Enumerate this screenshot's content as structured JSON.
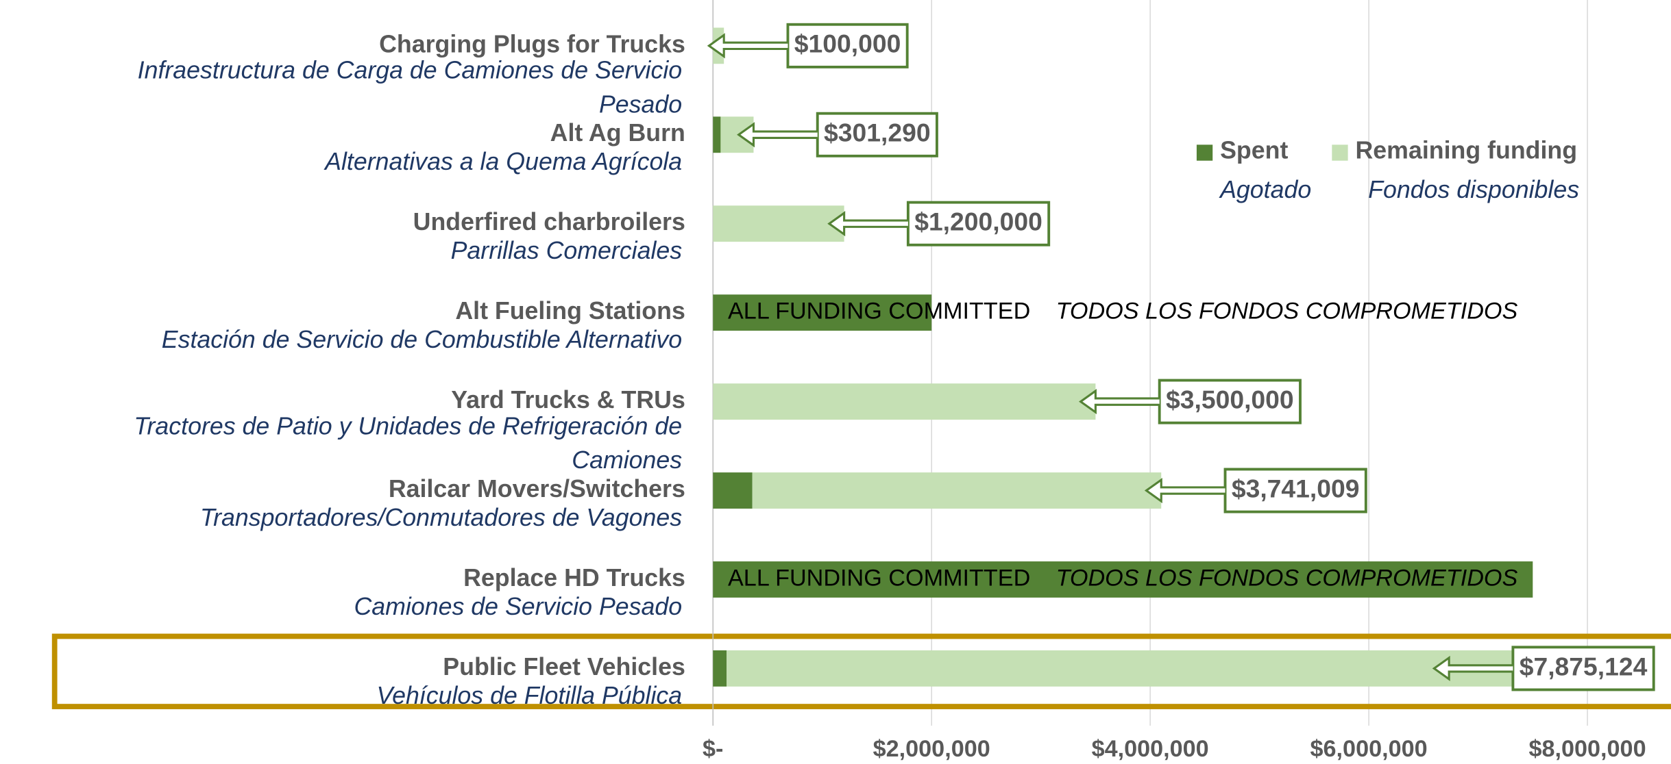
{
  "chart_data": {
    "type": "stacked-barh",
    "categories": [
      "Charging Plugs for Trucks",
      "Alt Ag Burn",
      "Underfired charbroilers",
      "Alt Fueling Stations",
      "Yard Trucks & TRUs",
      "Railcar Movers/Switchers",
      "Replace HD Trucks",
      "Public Fleet Vehicles"
    ],
    "categories_es": [
      "Infraestructura de Carga de Camiones de Servicio Pesado",
      "Alternativas a la Quema Agrícola",
      "Parrillas Comerciales",
      "Estación de Servicio de Combustible Alternativo",
      "Tractores de Patio y Unidades de Refrigeración de Camiones",
      "Transportadores/Conmutadores de Vagones",
      "Camiones de Servicio Pesado",
      "Vehículos de Flotilla Pública"
    ],
    "series": [
      {
        "name": "Spent",
        "name_es": "Agotado",
        "color": "#548235",
        "values": [
          0,
          70000,
          0,
          2000000,
          0,
          360000,
          7500000,
          125000
        ]
      },
      {
        "name": "Remaining funding",
        "name_es": "Fondos disponibles",
        "color": "#c5e0b4",
        "values": [
          100000,
          301290,
          1200000,
          0,
          3500000,
          3741009,
          0,
          7875124
        ],
        "value_labels": [
          "$100,000",
          "$301,290",
          "$1,200,000",
          null,
          "$3,500,000",
          "$3,741,009",
          null,
          "$7,875,124"
        ]
      }
    ],
    "annotations": [
      null,
      null,
      null,
      {
        "en": "ALL FUNDING COMMITTED",
        "es": "TODOS LOS FONDOS COMPROMETIDOS"
      },
      null,
      null,
      {
        "en": "ALL FUNDING COMMITTED",
        "es": "TODOS LOS FONDOS COMPROMETIDOS"
      },
      null
    ],
    "xlim": [
      0,
      8750000
    ],
    "xticks": [
      {
        "value": 0,
        "label": "$-"
      },
      {
        "value": 2000000,
        "label": "$2,000,000"
      },
      {
        "value": 4000000,
        "label": "$4,000,000"
      },
      {
        "value": 6000000,
        "label": "$6,000,000"
      },
      {
        "value": 8000000,
        "label": "$8,000,000"
      }
    ],
    "grid": true,
    "legend": "upper right"
  }
}
